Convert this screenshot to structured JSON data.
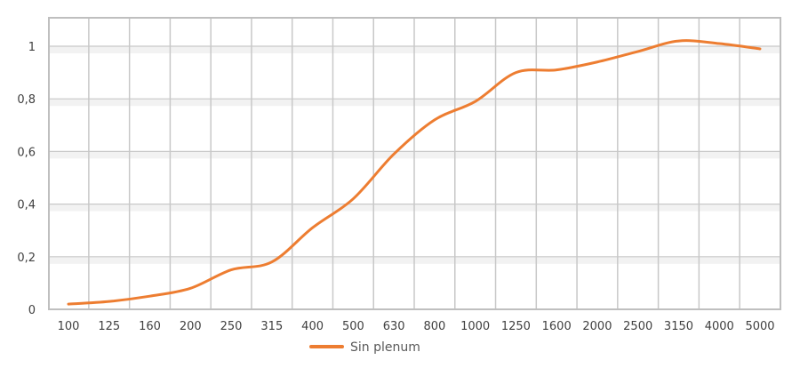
{
  "chart_data": {
    "type": "line",
    "categories": [
      "100",
      "125",
      "160",
      "200",
      "250",
      "315",
      "400",
      "500",
      "630",
      "800",
      "1000",
      "1250",
      "1600",
      "2000",
      "2500",
      "3150",
      "4000",
      "5000"
    ],
    "series": [
      {
        "name": "Sin plenum",
        "values": [
          0.02,
          0.03,
          0.05,
          0.08,
          0.15,
          0.18,
          0.31,
          0.42,
          0.59,
          0.72,
          0.79,
          0.9,
          0.91,
          0.94,
          0.98,
          1.02,
          1.01,
          0.99
        ],
        "color": "#ed7d31"
      }
    ],
    "y_ticks": [
      "0",
      "0,2",
      "0,4",
      "0,6",
      "0,8",
      "1"
    ],
    "ylim": [
      0,
      1.1
    ],
    "grid": true,
    "legend_position": "bottom"
  }
}
